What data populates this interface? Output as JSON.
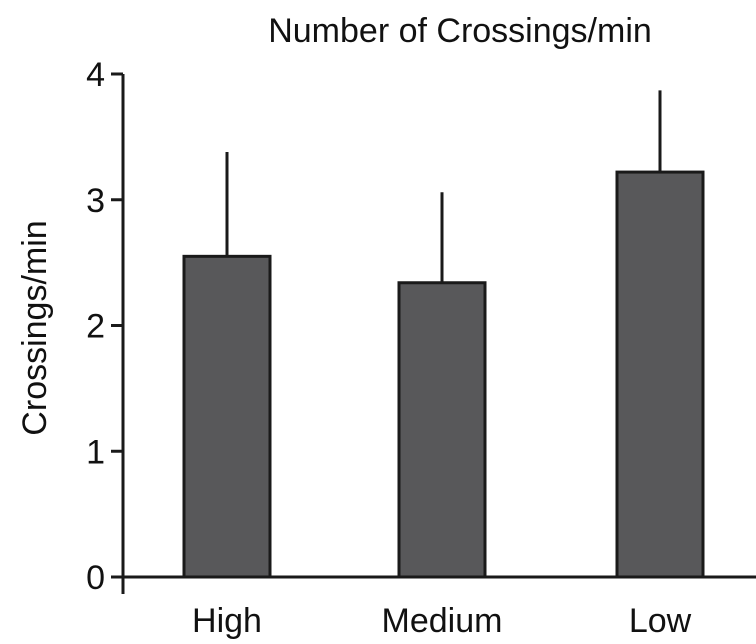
{
  "chart_data": {
    "type": "bar",
    "title": "Number of Crossings/min",
    "xlabel": "",
    "ylabel": "Crossings/min",
    "categories": [
      "High",
      "Medium",
      "Low"
    ],
    "values": [
      2.55,
      2.34,
      3.22
    ],
    "error_upper": [
      0.83,
      0.72,
      0.65
    ],
    "ylim": [
      0,
      4
    ],
    "yticks": [
      0,
      1,
      2,
      3,
      4
    ],
    "ytick_labels": [
      "0",
      "1",
      "2",
      "3",
      "4"
    ],
    "bar_color": "#58585a",
    "edge_color": "#1a1a1a",
    "grid": false,
    "legend": "none"
  }
}
